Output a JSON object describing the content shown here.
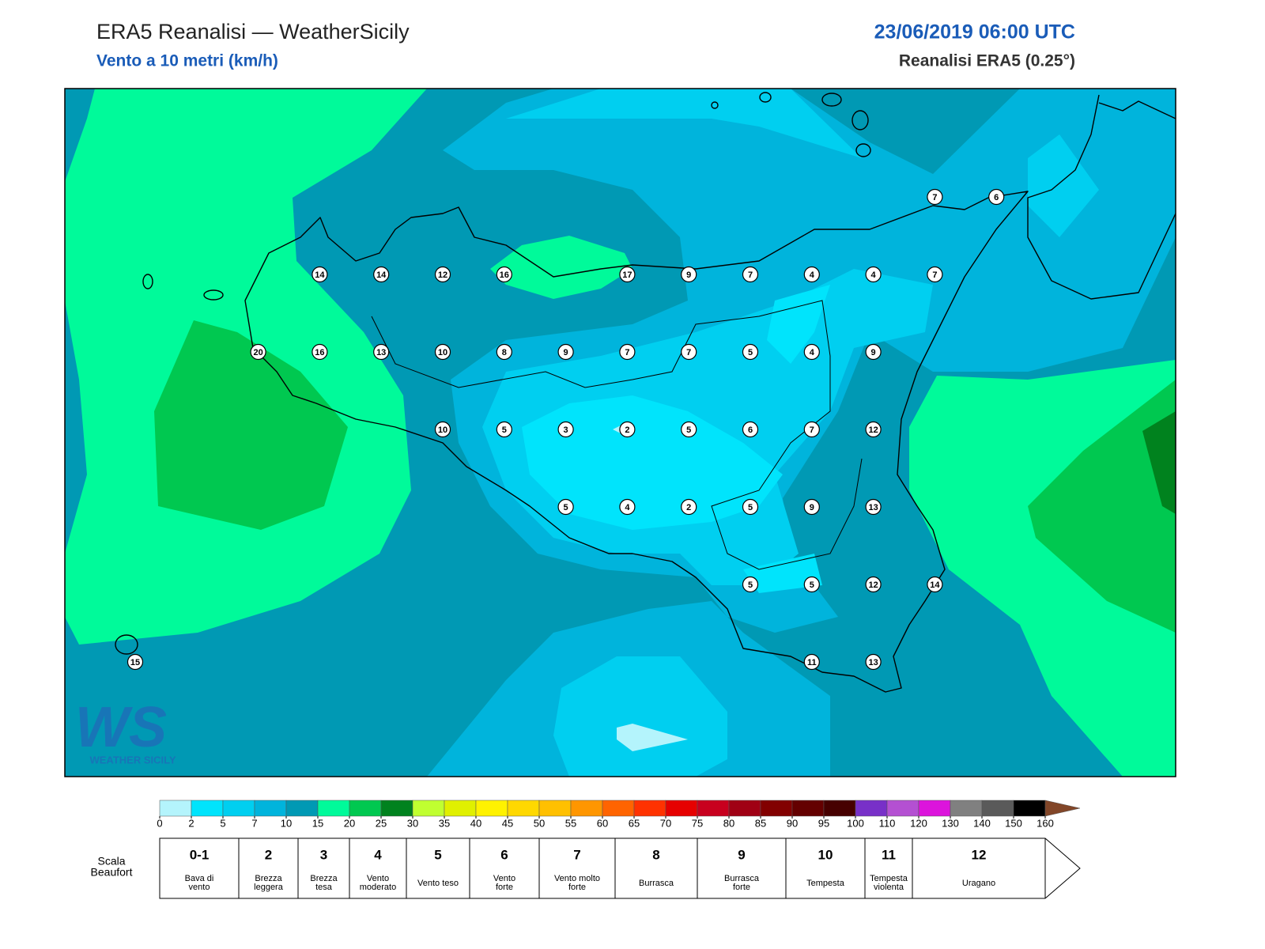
{
  "header": {
    "title": "ERA5 Reanalisi — WeatherSicily",
    "subtitle": "Vento a 10 metri (km/h)",
    "datetime": "23/06/2019 06:00 UTC",
    "source": "Reanalisi ERA5 (0.25°)"
  },
  "wind_grid": [
    [
      null,
      null,
      null,
      null,
      null,
      null,
      null,
      null,
      null,
      null,
      null,
      null,
      null,
      7,
      6
    ],
    [
      null,
      null,
      null,
      14,
      14,
      12,
      16,
      null,
      17,
      9,
      7,
      4,
      4,
      7,
      null
    ],
    [
      null,
      null,
      20,
      16,
      13,
      10,
      8,
      9,
      7,
      7,
      5,
      4,
      9,
      null,
      null
    ],
    [
      null,
      null,
      null,
      null,
      null,
      10,
      5,
      3,
      2,
      5,
      6,
      7,
      12,
      null,
      null
    ],
    [
      null,
      null,
      null,
      null,
      null,
      null,
      null,
      5,
      4,
      2,
      5,
      9,
      13,
      null,
      null
    ],
    [
      null,
      null,
      null,
      null,
      null,
      null,
      null,
      null,
      null,
      null,
      5,
      5,
      12,
      14,
      null
    ],
    [
      15,
      null,
      null,
      null,
      null,
      null,
      null,
      null,
      null,
      null,
      null,
      11,
      13,
      null,
      null
    ]
  ],
  "logo": {
    "mark": "WS",
    "name": "WEATHER SICILY"
  },
  "colorbar": {
    "ticks": [
      0,
      2,
      5,
      7,
      10,
      15,
      20,
      25,
      30,
      35,
      40,
      45,
      50,
      55,
      60,
      65,
      70,
      75,
      80,
      85,
      90,
      95,
      100,
      110,
      120,
      130,
      140,
      150,
      160
    ],
    "colors": [
      "#b4f4fc",
      "#00e4fc",
      "#00cff0",
      "#00b4dc",
      "#0099b4",
      "#00fa9a",
      "#00c850",
      "#00821e",
      "#c0ff30",
      "#e0f000",
      "#fff200",
      "#ffd800",
      "#ffc000",
      "#ff9600",
      "#ff6400",
      "#ff3200",
      "#e60000",
      "#c8001e",
      "#a00014",
      "#820000",
      "#640000",
      "#460000",
      "#7830c8",
      "#b450d2",
      "#dc14dc",
      "#808080",
      "#5a5a5a",
      "#000000",
      "#824628",
      "#c88c50"
    ]
  },
  "beaufort": {
    "label": [
      "Scala",
      "Beaufort"
    ],
    "forces": [
      {
        "force": "0-1",
        "desc": [
          "Bava di",
          "vento"
        ]
      },
      {
        "force": 2,
        "desc": [
          "Brezza",
          "leggera"
        ]
      },
      {
        "force": 3,
        "desc": [
          "Brezza",
          "tesa"
        ]
      },
      {
        "force": 4,
        "desc": [
          "Vento",
          "moderato"
        ]
      },
      {
        "force": 5,
        "desc": [
          "Vento teso"
        ]
      },
      {
        "force": 6,
        "desc": [
          "Vento",
          "forte"
        ]
      },
      {
        "force": 7,
        "desc": [
          "Vento molto",
          "forte"
        ]
      },
      {
        "force": 8,
        "desc": [
          "Burrasca"
        ]
      },
      {
        "force": 9,
        "desc": [
          "Burrasca",
          "forte"
        ]
      },
      {
        "force": 10,
        "desc": [
          "Tempesta"
        ]
      },
      {
        "force": 11,
        "desc": [
          "Tempesta",
          "violenta"
        ]
      },
      {
        "force": 12,
        "desc": [
          "Uragano"
        ]
      }
    ]
  }
}
